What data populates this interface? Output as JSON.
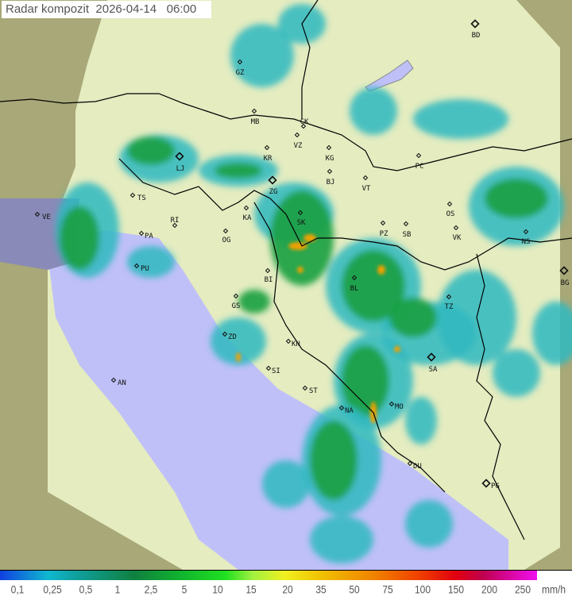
{
  "title": {
    "product": "Radar kompozit",
    "date": "2026-04-14",
    "time": "06:00"
  },
  "legend": {
    "ticks": [
      "0,1",
      "0,25",
      "0,5",
      "1",
      "2,5",
      "5",
      "10",
      "15",
      "20",
      "35",
      "50",
      "75",
      "100",
      "150",
      "200",
      "250"
    ],
    "unit": "mm/h",
    "colors": [
      "#1040e0",
      "#10b8d0",
      "#108040",
      "#20e020",
      "#f0f020",
      "#f08000",
      "#e00010",
      "#f010f0"
    ]
  },
  "colors": {
    "outside_coverage": "#a8a878",
    "coverage": "#e4ecc0",
    "sea": "#c0c0f8",
    "rain_light": "#30b8c0",
    "rain_moderate": "#18a040",
    "rain_heavy": "#f0a000",
    "border": "#000000"
  },
  "cities": [
    "GZ",
    "BD",
    "MB",
    "CK",
    "VZ",
    "KR",
    "KG",
    "LJ",
    "ZG",
    "BJ",
    "VT",
    "PC",
    "TS",
    "VE",
    "RI",
    "KA",
    "SK",
    "OG",
    "PA",
    "PU",
    "BI",
    "BL",
    "OS",
    "VK",
    "PZ",
    "SB",
    "NS",
    "BG",
    "GS",
    "TZ",
    "ZD",
    "KN",
    "SI",
    "SA",
    "AN",
    "ST",
    "NA",
    "MO",
    "DU",
    "PG"
  ]
}
